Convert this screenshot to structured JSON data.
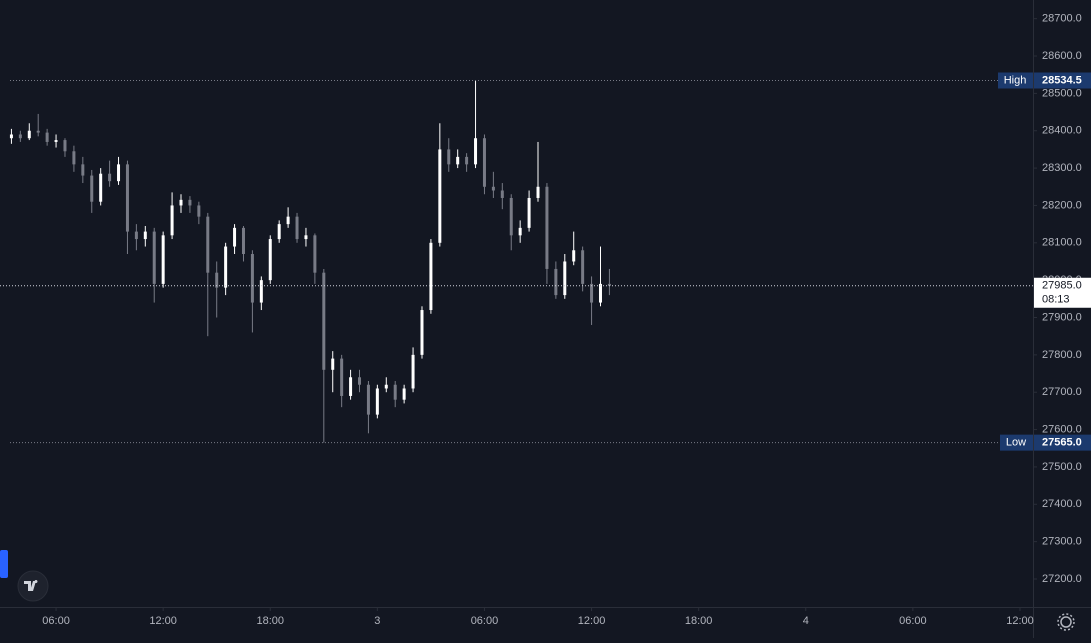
{
  "chart_data": {
    "type": "candlestick",
    "x": [
      3.5,
      4,
      4.5,
      5,
      5.5,
      6,
      6.5,
      7,
      7.5,
      8,
      8.5,
      9,
      9.5,
      10,
      10.5,
      11,
      11.5,
      12,
      12.5,
      13,
      13.5,
      14,
      14.5,
      15,
      15.5,
      16,
      16.5,
      17,
      17.5,
      18,
      18.5,
      19,
      19.5,
      20,
      20.5,
      21,
      21.5,
      22,
      22.5,
      23,
      23.5,
      24,
      24.5,
      25,
      25.5,
      26,
      26.5,
      27,
      27.5,
      28,
      28.5,
      29,
      29.5,
      30,
      30.5,
      31,
      31.5,
      32,
      32.5,
      33,
      33.5,
      34,
      34.5,
      35,
      35.5,
      36,
      36.5,
      37
    ],
    "open": [
      28380,
      28390,
      28380,
      28400,
      28395,
      28370,
      28375,
      28345,
      28310,
      28280,
      28210,
      28285,
      28265,
      28310,
      28130,
      28110,
      28130,
      27990,
      28120,
      28200,
      28215,
      28200,
      28170,
      28020,
      27980,
      28090,
      28140,
      28070,
      27940,
      28000,
      28110,
      28150,
      28170,
      28110,
      28120,
      28020,
      27760,
      27790,
      27690,
      27740,
      27720,
      27640,
      27710,
      27720,
      27680,
      27710,
      27800,
      27920,
      28100,
      28350,
      28310,
      28330,
      28310,
      28380,
      28250,
      28240,
      28220,
      28120,
      28140,
      28220,
      28250,
      28030,
      27960,
      28050,
      28080,
      27990,
      27940,
      27990
    ],
    "high": [
      28405,
      28400,
      28420,
      28445,
      28405,
      28390,
      28380,
      28360,
      28330,
      28295,
      28300,
      28320,
      28330,
      28320,
      28150,
      28145,
      28140,
      28130,
      28235,
      28230,
      28225,
      28210,
      28180,
      28050,
      28100,
      28150,
      28145,
      28080,
      28010,
      28120,
      28160,
      28195,
      28180,
      28140,
      28125,
      28030,
      27810,
      27800,
      27760,
      27760,
      27730,
      27720,
      27740,
      27730,
      27720,
      27820,
      27930,
      28110,
      28420,
      28380,
      28350,
      28340,
      28534.5,
      28390,
      28290,
      28260,
      28230,
      28160,
      28240,
      28370,
      28260,
      28050,
      28070,
      28130,
      28090,
      28010,
      28090,
      28030
    ],
    "low": [
      28365,
      28370,
      28375,
      28385,
      28360,
      28355,
      28330,
      28290,
      28260,
      28180,
      28200,
      28250,
      28255,
      28070,
      28080,
      28090,
      27940,
      27980,
      28110,
      28180,
      28180,
      28150,
      27850,
      27900,
      27960,
      28070,
      28050,
      27860,
      27920,
      27990,
      28100,
      28140,
      28100,
      28090,
      27990,
      27565,
      27700,
      27660,
      27680,
      27700,
      27590,
      27630,
      27700,
      27660,
      27670,
      27700,
      27790,
      27910,
      28090,
      28290,
      28300,
      28290,
      28300,
      28230,
      28220,
      28190,
      28080,
      28100,
      28130,
      28210,
      27990,
      27950,
      27950,
      28040,
      27970,
      27880,
      27930,
      27960
    ],
    "close": [
      28390,
      28380,
      28400,
      28395,
      28370,
      28375,
      28345,
      28310,
      28280,
      28210,
      28285,
      28265,
      28310,
      28130,
      28110,
      28130,
      27990,
      28120,
      28200,
      28215,
      28200,
      28170,
      28020,
      27980,
      28090,
      28140,
      28070,
      27940,
      28000,
      28110,
      28150,
      28170,
      28110,
      28120,
      28020,
      27760,
      27790,
      27690,
      27740,
      27720,
      27640,
      27710,
      27720,
      27680,
      27710,
      27800,
      27920,
      28100,
      28350,
      28310,
      28330,
      28310,
      28380,
      28250,
      28240,
      28220,
      28120,
      28140,
      28220,
      28250,
      28030,
      27960,
      28050,
      28080,
      27990,
      27940,
      27990,
      27985
    ],
    "rise_color": "#ffffff",
    "fall_color": "#787b86",
    "xlim": [
      3.42,
      60.73
    ],
    "xticks": [
      {
        "value": 6,
        "label": "06:00"
      },
      {
        "value": 12,
        "label": "12:00"
      },
      {
        "value": 18,
        "label": "18:00"
      },
      {
        "value": 24,
        "label": "3"
      },
      {
        "value": 30,
        "label": "06:00"
      },
      {
        "value": 36,
        "label": "12:00"
      },
      {
        "value": 42,
        "label": "18:00"
      },
      {
        "value": 48,
        "label": "4"
      },
      {
        "value": 54,
        "label": "06:00"
      },
      {
        "value": 60,
        "label": "12:00"
      }
    ],
    "ylim": [
      27125,
      28750
    ],
    "yticks": [
      {
        "value": 27200,
        "label": "27200.0"
      },
      {
        "value": 27300,
        "label": "27300.0"
      },
      {
        "value": 27400,
        "label": "27400.0"
      },
      {
        "value": 27500,
        "label": "27500.0"
      },
      {
        "value": 27600,
        "label": "27600.0"
      },
      {
        "value": 27700,
        "label": "27700.0"
      },
      {
        "value": 27800,
        "label": "27800.0"
      },
      {
        "value": 27900,
        "label": "27900.0"
      },
      {
        "value": 28000,
        "label": "28000.0"
      },
      {
        "value": 28100,
        "label": "28100.0"
      },
      {
        "value": 28200,
        "label": "28200.0"
      },
      {
        "value": 28300,
        "label": "28300.0"
      },
      {
        "value": 28400,
        "label": "28400.0"
      },
      {
        "value": 28500,
        "label": "28500.0"
      },
      {
        "value": 28600,
        "label": "28600.0"
      },
      {
        "value": 28700,
        "label": "28700.0"
      }
    ],
    "high_line": {
      "label": "High",
      "value": 28534.5
    },
    "low_line": {
      "label": "Low",
      "value": {
        "value": 27565,
        "label": "27565.0"
      }
    },
    "last_price": {
      "value": {
        "value": 27985,
        "label": "27985.0"
      },
      "countdown": "08:13"
    }
  }
}
